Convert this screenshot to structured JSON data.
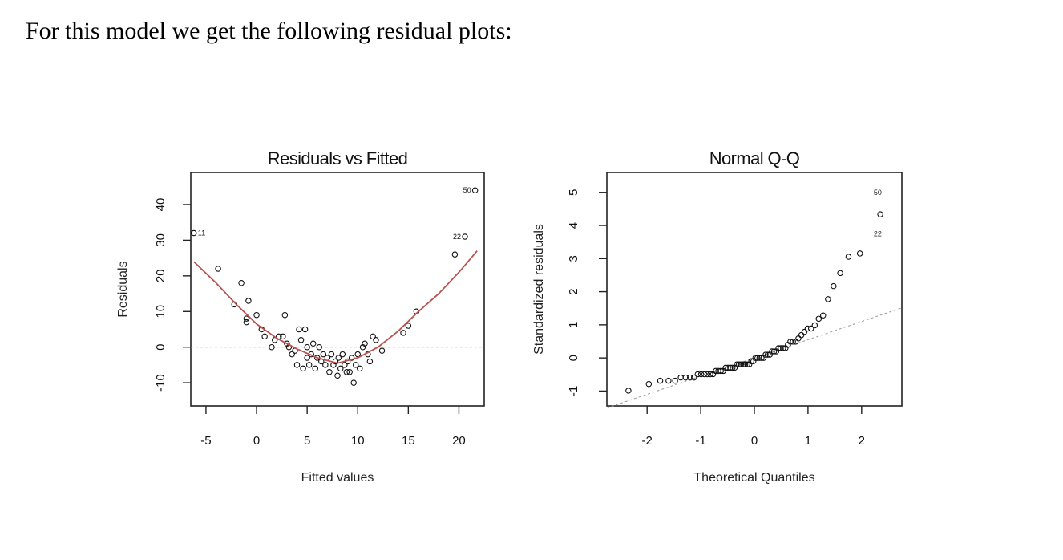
{
  "page": {
    "intro_text": "For this model we get the following residual plots:"
  },
  "chart_data": [
    {
      "type": "scatter",
      "title": "Residuals vs Fitted",
      "xlabel": "Fitted values",
      "ylabel": "Residuals",
      "xlim": [
        -6.5,
        22.5
      ],
      "ylim": [
        -16.5,
        49
      ],
      "xticks": [
        -5,
        0,
        5,
        10,
        15,
        20
      ],
      "yticks": [
        -10,
        0,
        10,
        20,
        30,
        40
      ],
      "reference_line_y": 0,
      "colors": {
        "points": "#111111",
        "smooth": "#b9534f",
        "reference": "#b0b0b0"
      },
      "points": [
        [
          -6.2,
          32
        ],
        [
          -3.8,
          22
        ],
        [
          -1.5,
          18
        ],
        [
          -0.8,
          13
        ],
        [
          -2.2,
          12
        ],
        [
          -1.0,
          7
        ],
        [
          -1.0,
          8
        ],
        [
          0.0,
          9
        ],
        [
          0.5,
          5
        ],
        [
          0.8,
          3
        ],
        [
          1.5,
          0
        ],
        [
          1.8,
          2
        ],
        [
          2.2,
          3
        ],
        [
          2.6,
          3
        ],
        [
          2.8,
          9
        ],
        [
          3.0,
          1
        ],
        [
          3.2,
          0
        ],
        [
          3.5,
          -2
        ],
        [
          3.8,
          -1
        ],
        [
          4.0,
          -5
        ],
        [
          4.2,
          5
        ],
        [
          4.4,
          2
        ],
        [
          4.6,
          -6
        ],
        [
          4.8,
          5
        ],
        [
          5.0,
          -3
        ],
        [
          5.0,
          0
        ],
        [
          5.2,
          -5
        ],
        [
          5.4,
          -2
        ],
        [
          5.6,
          1
        ],
        [
          5.8,
          -6
        ],
        [
          6.0,
          -3
        ],
        [
          6.2,
          0
        ],
        [
          6.4,
          -4
        ],
        [
          6.6,
          -2
        ],
        [
          6.8,
          -5
        ],
        [
          7.0,
          -3
        ],
        [
          7.2,
          -7
        ],
        [
          7.4,
          -2
        ],
        [
          7.6,
          -5
        ],
        [
          7.8,
          -4
        ],
        [
          8.0,
          -8
        ],
        [
          8.1,
          -3
        ],
        [
          8.3,
          -6
        ],
        [
          8.5,
          -2
        ],
        [
          8.7,
          -5
        ],
        [
          8.9,
          -7
        ],
        [
          9.0,
          -4
        ],
        [
          9.2,
          -7
        ],
        [
          9.4,
          -3
        ],
        [
          9.6,
          -10
        ],
        [
          9.8,
          -5
        ],
        [
          10.0,
          -2
        ],
        [
          10.2,
          -6
        ],
        [
          10.5,
          0
        ],
        [
          10.7,
          1
        ],
        [
          11.0,
          -2
        ],
        [
          11.2,
          -4
        ],
        [
          11.5,
          3
        ],
        [
          11.8,
          2
        ],
        [
          12.4,
          -1
        ],
        [
          14.5,
          4
        ],
        [
          15.0,
          6
        ],
        [
          15.8,
          10
        ],
        [
          19.6,
          26
        ],
        [
          20.6,
          31
        ],
        [
          21.6,
          44
        ]
      ],
      "smooth_line": [
        [
          -6.2,
          24
        ],
        [
          -4,
          18
        ],
        [
          -2,
          12
        ],
        [
          0,
          6.5
        ],
        [
          2,
          2.5
        ],
        [
          4,
          -0.5
        ],
        [
          6,
          -3
        ],
        [
          8,
          -4.5
        ],
        [
          10,
          -3
        ],
        [
          12,
          0
        ],
        [
          14,
          4.5
        ],
        [
          16,
          10
        ],
        [
          18,
          15
        ],
        [
          20,
          21
        ],
        [
          21.8,
          27
        ]
      ],
      "annotations": [
        {
          "label": "11",
          "x": -6.2,
          "y": 32,
          "side": "right"
        },
        {
          "label": "22",
          "x": 20.6,
          "y": 31,
          "side": "left"
        },
        {
          "label": "50",
          "x": 21.6,
          "y": 44,
          "side": "left"
        }
      ]
    },
    {
      "type": "scatter",
      "title": "Normal Q-Q",
      "xlabel": "Theoretical Quantiles",
      "ylabel": "Standardized residuals",
      "xlim": [
        -2.75,
        2.75
      ],
      "ylim": [
        -1.45,
        5.6
      ],
      "xticks": [
        -2,
        -1,
        0,
        1,
        2
      ],
      "yticks": [
        -1,
        0,
        1,
        2,
        3,
        4,
        5
      ],
      "reference_line": {
        "intercept": 0,
        "slope": 0.55
      },
      "colors": {
        "points": "#111111",
        "reference": "#9a9a9a"
      },
      "annotations": [
        {
          "label": "22",
          "x": 2.15,
          "y": 3.75,
          "side": "right"
        },
        {
          "label": "50",
          "x": 2.45,
          "y": 5.0,
          "side": "left"
        }
      ]
    }
  ]
}
